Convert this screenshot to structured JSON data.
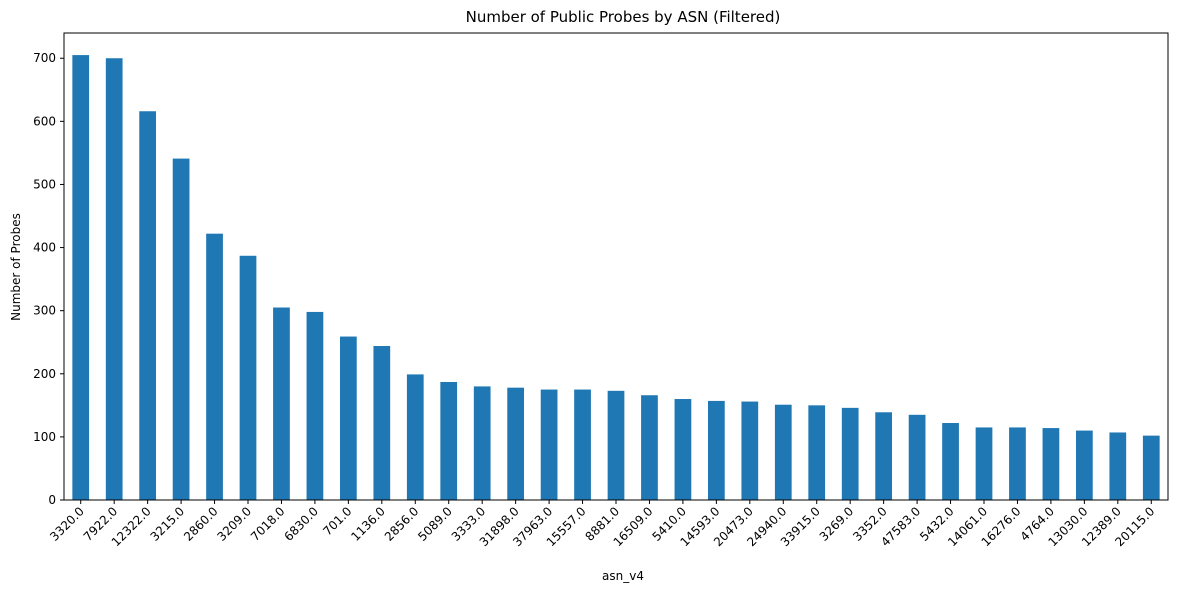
{
  "chart_data": {
    "type": "bar",
    "title": "Number of Public Probes by ASN (Filtered)",
    "xlabel": "asn_v4",
    "ylabel": "Number of Probes",
    "categories": [
      "3320.0",
      "7922.0",
      "12322.0",
      "3215.0",
      "2860.0",
      "3209.0",
      "7018.0",
      "6830.0",
      "701.0",
      "1136.0",
      "2856.0",
      "5089.0",
      "3333.0",
      "31898.0",
      "37963.0",
      "15557.0",
      "8881.0",
      "16509.0",
      "5410.0",
      "14593.0",
      "20473.0",
      "24940.0",
      "33915.0",
      "3269.0",
      "3352.0",
      "47583.0",
      "5432.0",
      "14061.0",
      "16276.0",
      "4764.0",
      "13030.0",
      "12389.0",
      "20115.0"
    ],
    "values": [
      705,
      700,
      616,
      541,
      422,
      387,
      305,
      298,
      259,
      244,
      199,
      187,
      180,
      178,
      175,
      175,
      173,
      166,
      160,
      157,
      156,
      151,
      150,
      146,
      139,
      135,
      122,
      115,
      115,
      114,
      110,
      107,
      102
    ],
    "yticks": [
      0,
      100,
      200,
      300,
      400,
      500,
      600,
      700
    ],
    "ylim": [
      0,
      740
    ],
    "bar_color": "#1f77b4",
    "grid": false,
    "legend": false
  }
}
